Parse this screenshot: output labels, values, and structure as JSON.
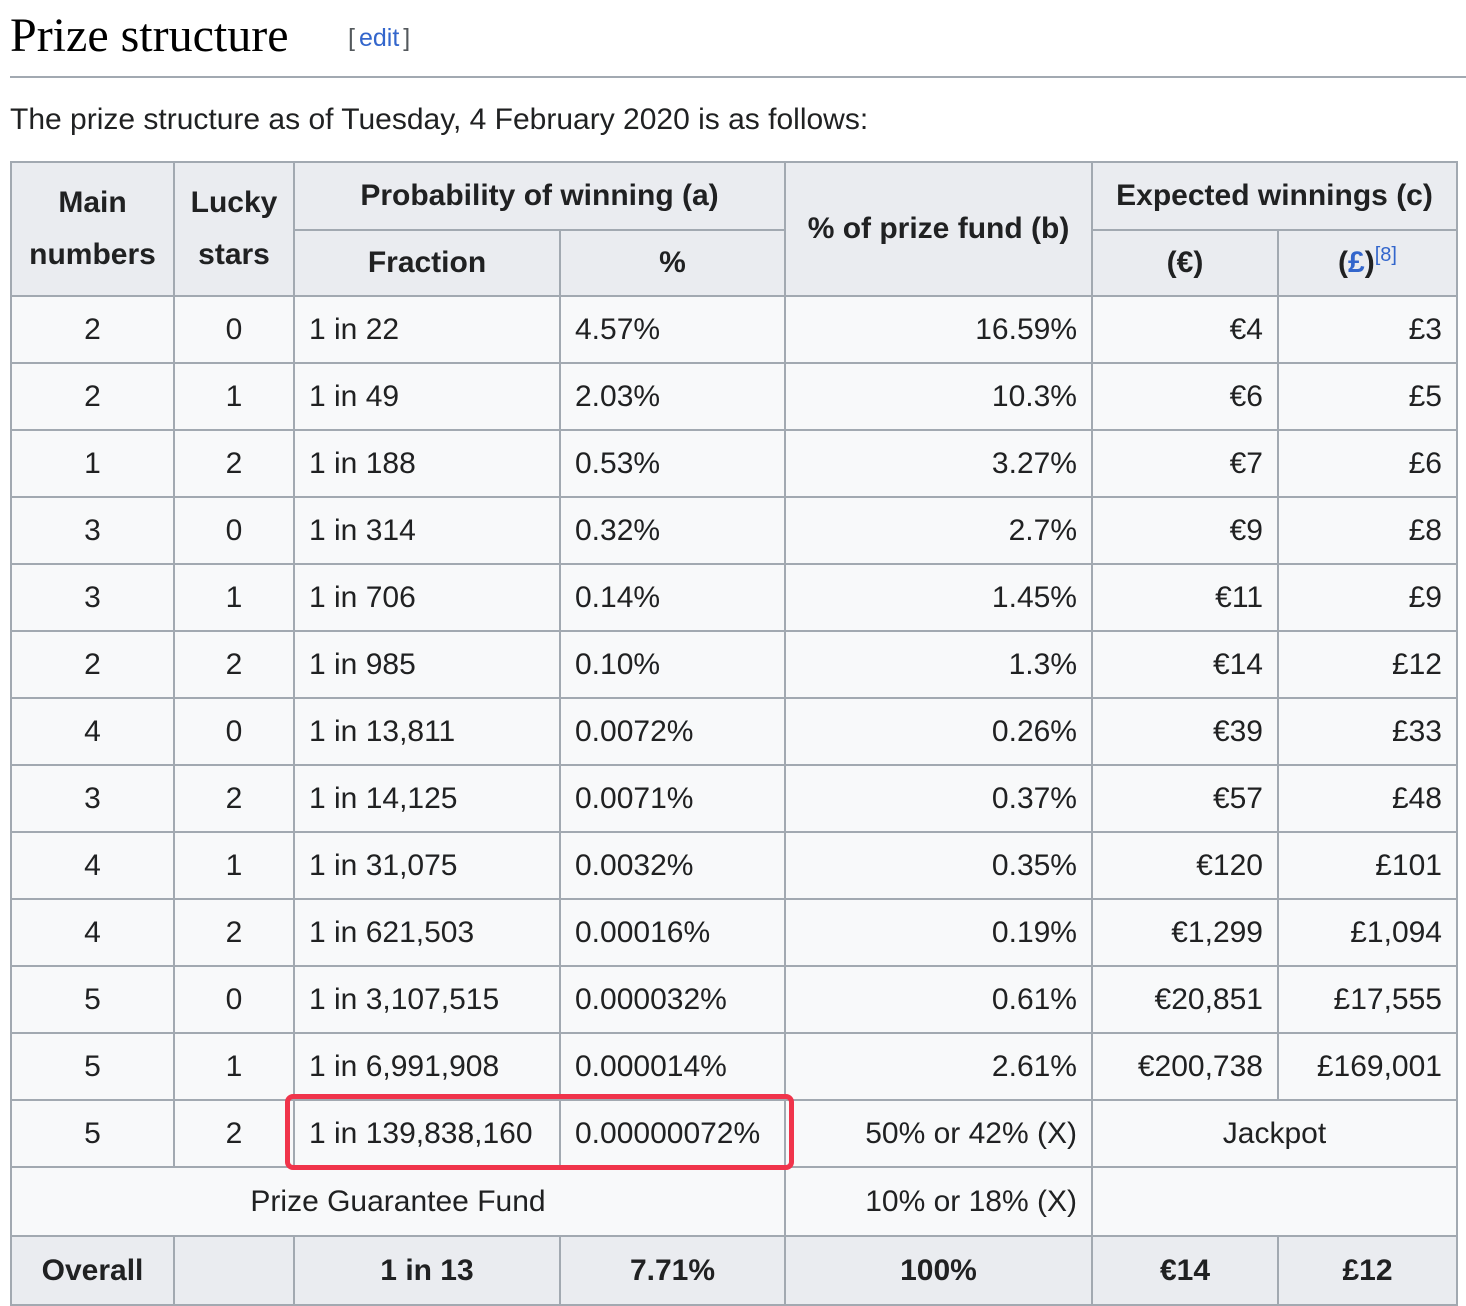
{
  "section": {
    "title": "Prize structure",
    "edit_open": "[",
    "edit_label": "edit",
    "edit_close": "]"
  },
  "intro": "The prize structure as of Tuesday, 4 February 2020 is as follows:",
  "table": {
    "headers": {
      "main_line1": "Main",
      "main_line2": "numbers",
      "lucky_line1": "Lucky",
      "lucky_line2": "stars",
      "probability": "Probability of winning (a)",
      "fraction": "Fraction",
      "percent": "%",
      "prize_fund": "% of prize fund (b)",
      "expected": "Expected winnings (c)",
      "eur": "(€)",
      "gbp_open": "(",
      "gbp_symbol": "£",
      "gbp_close": ")",
      "gbp_ref": "[8]"
    },
    "rows": [
      {
        "main": "2",
        "stars": "0",
        "fraction": "1 in 22",
        "percent": "4.57%",
        "fund": "16.59%",
        "eur": "€4",
        "gbp": "£3"
      },
      {
        "main": "2",
        "stars": "1",
        "fraction": "1 in 49",
        "percent": "2.03%",
        "fund": "10.3%",
        "eur": "€6",
        "gbp": "£5"
      },
      {
        "main": "1",
        "stars": "2",
        "fraction": "1 in 188",
        "percent": "0.53%",
        "fund": "3.27%",
        "eur": "€7",
        "gbp": "£6"
      },
      {
        "main": "3",
        "stars": "0",
        "fraction": "1 in 314",
        "percent": "0.32%",
        "fund": "2.7%",
        "eur": "€9",
        "gbp": "£8"
      },
      {
        "main": "3",
        "stars": "1",
        "fraction": "1 in 706",
        "percent": "0.14%",
        "fund": "1.45%",
        "eur": "€11",
        "gbp": "£9"
      },
      {
        "main": "2",
        "stars": "2",
        "fraction": "1 in 985",
        "percent": "0.10%",
        "fund": "1.3%",
        "eur": "€14",
        "gbp": "£12"
      },
      {
        "main": "4",
        "stars": "0",
        "fraction": "1 in 13,811",
        "percent": "0.0072%",
        "fund": "0.26%",
        "eur": "€39",
        "gbp": "£33"
      },
      {
        "main": "3",
        "stars": "2",
        "fraction": "1 in 14,125",
        "percent": "0.0071%",
        "fund": "0.37%",
        "eur": "€57",
        "gbp": "£48"
      },
      {
        "main": "4",
        "stars": "1",
        "fraction": "1 in 31,075",
        "percent": "0.0032%",
        "fund": "0.35%",
        "eur": "€120",
        "gbp": "£101"
      },
      {
        "main": "4",
        "stars": "2",
        "fraction": "1 in 621,503",
        "percent": "0.00016%",
        "fund": "0.19%",
        "eur": "€1,299",
        "gbp": "£1,094"
      },
      {
        "main": "5",
        "stars": "0",
        "fraction": "1 in 3,107,515",
        "percent": "0.000032%",
        "fund": "0.61%",
        "eur": "€20,851",
        "gbp": "£17,555"
      },
      {
        "main": "5",
        "stars": "1",
        "fraction": "1 in 6,991,908",
        "percent": "0.000014%",
        "fund": "2.61%",
        "eur": "€200,738",
        "gbp": "£169,001"
      }
    ],
    "jackpot_row": {
      "main": "5",
      "stars": "2",
      "fraction": "1 in 139,838,160",
      "percent": "0.00000072%",
      "fund": "50% or 42% (X)",
      "winnings": "Jackpot"
    },
    "guarantee_row": {
      "label": "Prize Guarantee Fund",
      "fund": "10% or 18% (X)"
    },
    "overall_row": {
      "label": "Overall",
      "stars": "",
      "fraction": "1 in 13",
      "percent": "7.71%",
      "fund": "100%",
      "eur": "€14",
      "gbp": "£12"
    }
  },
  "highlight_color": "#f0344b",
  "link_color": "#3366cc"
}
